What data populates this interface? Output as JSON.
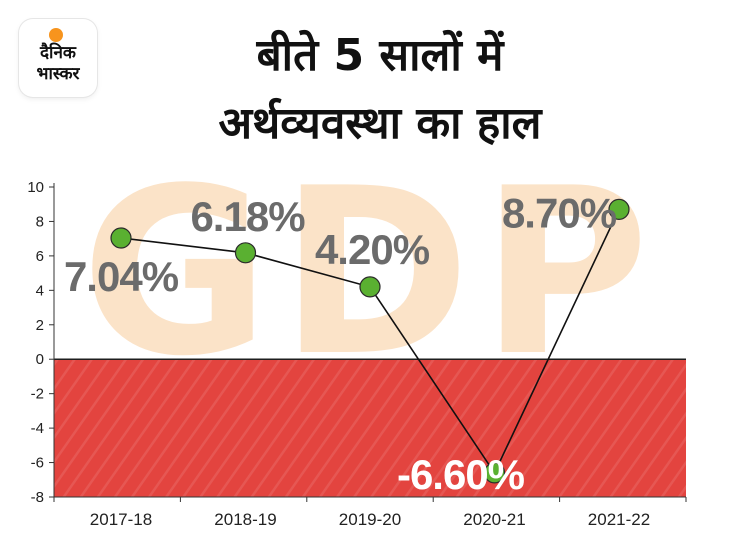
{
  "brand": {
    "logo_text_line1": "दैनिक",
    "logo_text_line2": "भास्कर",
    "accent": "#f7941d"
  },
  "title_line1": "बीते 5 सालों में",
  "title_line2": "अर्थव्यवस्था का हाल",
  "watermark": "GDP",
  "colors": {
    "negative_zone": "#e3443f",
    "marker": "#5ab031",
    "label": "#6b6b6b",
    "watermark": "#fbe3c8"
  },
  "chart_data": {
    "type": "line",
    "categories": [
      "2017-18",
      "2018-19",
      "2019-20",
      "2020-21",
      "2021-22"
    ],
    "values": [
      7.04,
      6.18,
      4.2,
      -6.6,
      8.7
    ],
    "data_labels": [
      "7.04%",
      "6.18%",
      "4.20%",
      "-6.60%",
      "8.70%"
    ],
    "yticks": [
      10,
      8,
      6,
      4,
      2,
      0,
      -2,
      -4,
      -6,
      -8
    ],
    "ylim": [
      -8,
      10
    ],
    "grid": false,
    "negative_region_shaded": true
  }
}
